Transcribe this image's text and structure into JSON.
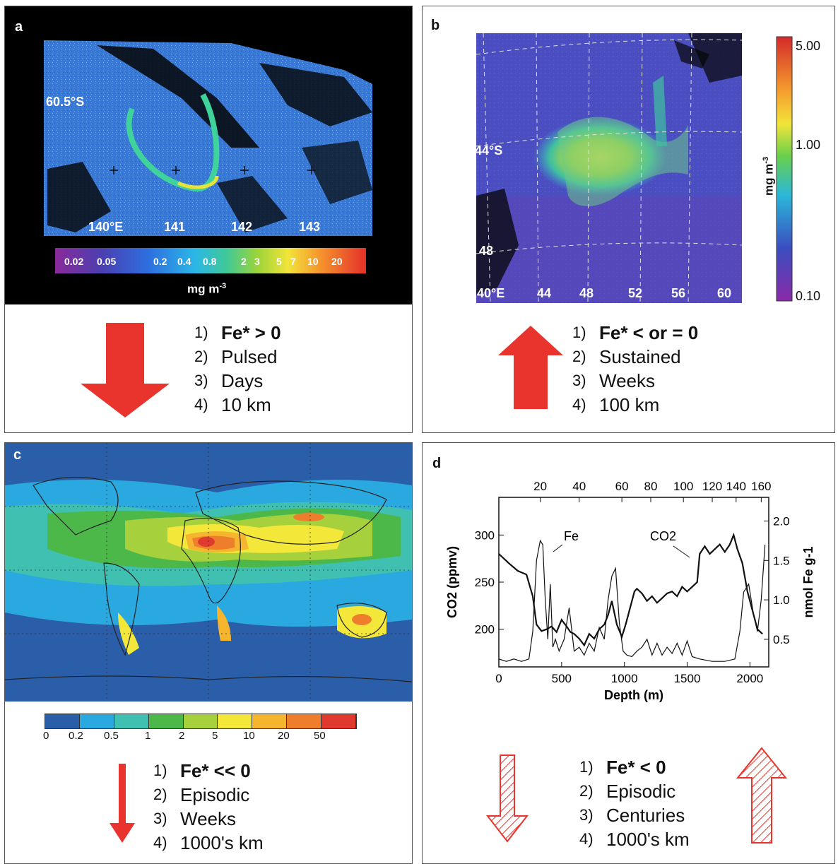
{
  "panels": {
    "a": {
      "label": "a",
      "lat_label": "60.5°S",
      "lon_labels": [
        "140°E",
        "141",
        "142",
        "143"
      ],
      "colorbar_ticks": [
        "0.02",
        "0.05",
        "0.2",
        "0.4",
        "0.8",
        "2",
        "3",
        "5",
        "7",
        "10",
        "20"
      ],
      "colorbar_unit": "mg m",
      "colorbar_unit_exp": "-3",
      "arrow_direction": "down",
      "items": [
        "Fe* > 0",
        "Pulsed",
        "Days",
        "10 km"
      ]
    },
    "b": {
      "label": "b",
      "lat_labels": [
        "44°S",
        "48"
      ],
      "lon_labels": [
        "40°E",
        "44",
        "48",
        "52",
        "56",
        "60"
      ],
      "colorbar_ticks": [
        "5.00",
        "1.00",
        "0.10"
      ],
      "colorbar_unit": "mg m",
      "colorbar_unit_exp": "-3",
      "arrow_direction": "up",
      "items": [
        "Fe* < or = 0",
        "Sustained",
        "Weeks",
        "100 km"
      ]
    },
    "c": {
      "label": "c",
      "colorbar_ticks": [
        "0",
        "0.2",
        "0.5",
        "1",
        "2",
        "5",
        "10",
        "20",
        "50"
      ],
      "colorbar_colors": [
        "#2a5ea8",
        "#2aa9e0",
        "#3fc0b0",
        "#4cb84a",
        "#a6d13c",
        "#f3e83a",
        "#f5b52e",
        "#ef7e2c",
        "#e03a2e"
      ],
      "arrow_direction": "down",
      "items": [
        "Fe* << 0",
        "Episodic",
        "Weeks",
        "1000's km"
      ]
    },
    "d": {
      "label": "d",
      "arrow_directions": [
        "down",
        "up"
      ],
      "items": [
        "Fe* < 0",
        "Episodic",
        "Centuries",
        "1000's km"
      ]
    }
  },
  "colors": {
    "arrow_red": "#e8342c",
    "hatch_red": "#e8342c"
  },
  "chart_data": {
    "type": "line",
    "xlabel": "Depth (m)",
    "ylabel_left": "CO2 (ppmv)",
    "ylabel_right": "nmol Fe g-1",
    "xlim": [
      0,
      2150
    ],
    "ylim_left": [
      160,
      340
    ],
    "ylim_right": [
      0.15,
      2.3
    ],
    "x_ticks": [
      0,
      500,
      1000,
      1500,
      2000
    ],
    "y_ticks_left": [
      200,
      250,
      300
    ],
    "y_ticks_right": [
      0.5,
      1.0,
      1.5,
      2.0
    ],
    "x2_ticks": [
      20,
      40,
      60,
      80,
      100,
      120,
      140,
      160
    ],
    "x2_tick_depths": [
      330,
      640,
      980,
      1210,
      1470,
      1700,
      1890,
      2090
    ],
    "series": [
      {
        "name": "CO2",
        "axis": "left",
        "x": [
          0,
          80,
          150,
          220,
          270,
          300,
          340,
          380,
          420,
          460,
          500,
          540,
          570,
          600,
          640,
          680,
          720,
          760,
          800,
          840,
          870,
          900,
          940,
          980,
          1010,
          1050,
          1080,
          1100,
          1140,
          1180,
          1220,
          1260,
          1300,
          1340,
          1380,
          1420,
          1460,
          1500,
          1540,
          1580,
          1600,
          1640,
          1680,
          1720,
          1760,
          1800,
          1840,
          1870,
          1900,
          1940,
          1980,
          2020,
          2060,
          2100
        ],
        "y": [
          280,
          270,
          262,
          258,
          235,
          205,
          198,
          200,
          203,
          197,
          210,
          203,
          197,
          195,
          190,
          183,
          195,
          190,
          200,
          205,
          215,
          230,
          205,
          192,
          205,
          225,
          240,
          243,
          238,
          230,
          235,
          228,
          233,
          238,
          240,
          235,
          245,
          240,
          245,
          250,
          280,
          288,
          280,
          285,
          290,
          282,
          290,
          300,
          285,
          270,
          240,
          220,
          200,
          195
        ]
      },
      {
        "name": "Fe",
        "axis": "right",
        "x": [
          0,
          60,
          120,
          180,
          240,
          270,
          300,
          330,
          350,
          370,
          390,
          410,
          430,
          450,
          480,
          520,
          560,
          600,
          640,
          680,
          720,
          760,
          800,
          840,
          870,
          900,
          930,
          960,
          990,
          1020,
          1060,
          1100,
          1140,
          1180,
          1220,
          1260,
          1300,
          1340,
          1380,
          1420,
          1460,
          1500,
          1540,
          1600,
          1700,
          1800,
          1880,
          1920,
          1950,
          1990,
          2030,
          2060,
          2090,
          2120
        ],
        "y": [
          0.25,
          0.22,
          0.25,
          0.22,
          0.25,
          0.6,
          1.5,
          1.75,
          1.7,
          1.0,
          0.5,
          1.2,
          0.4,
          0.5,
          0.35,
          0.5,
          0.9,
          0.35,
          0.4,
          0.3,
          0.45,
          0.35,
          0.65,
          0.5,
          1.0,
          1.3,
          1.4,
          0.7,
          0.35,
          0.3,
          0.28,
          0.35,
          0.4,
          0.5,
          0.3,
          0.45,
          0.3,
          0.4,
          0.32,
          0.45,
          0.3,
          0.48,
          0.28,
          0.25,
          0.22,
          0.22,
          0.25,
          0.6,
          1.1,
          1.2,
          0.8,
          0.6,
          1.0,
          1.7
        ]
      }
    ],
    "annotations": [
      "Fe",
      "CO2"
    ]
  }
}
